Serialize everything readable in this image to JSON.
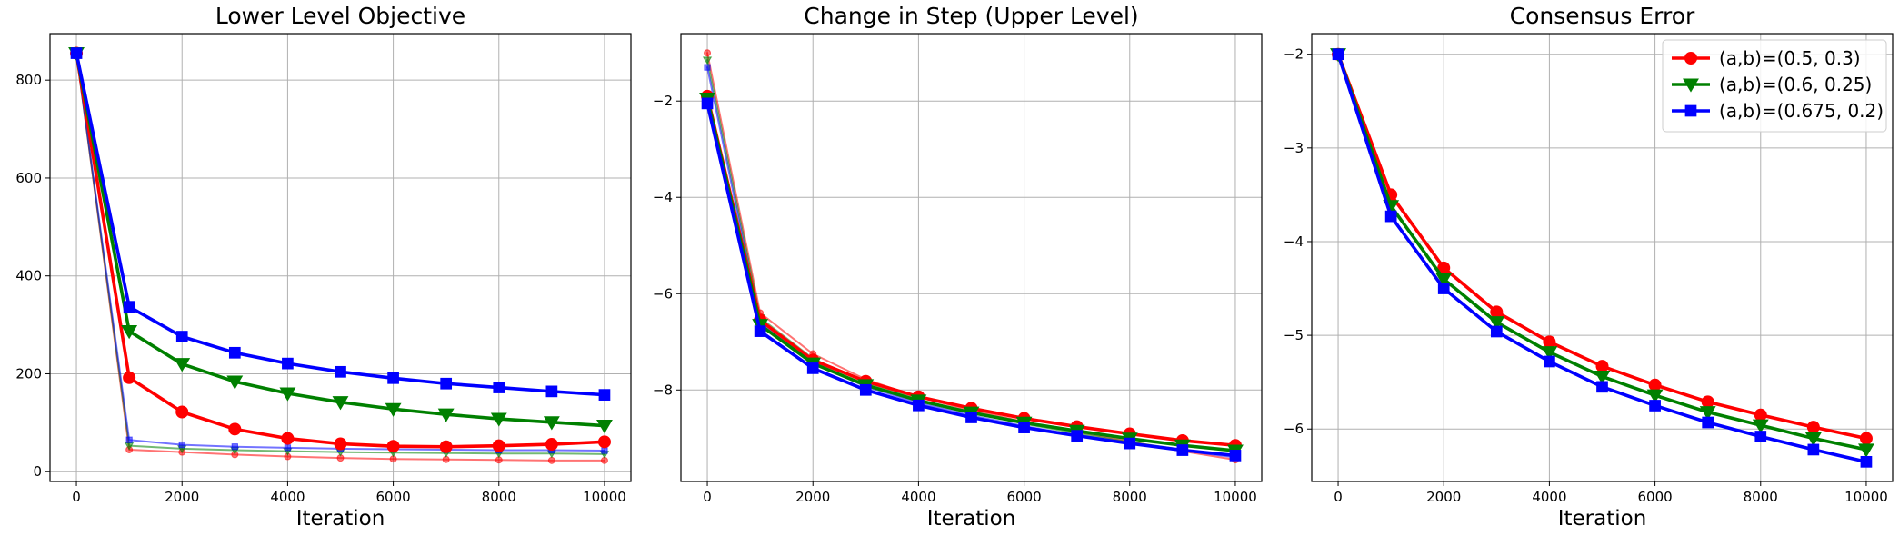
{
  "chart_data": [
    {
      "type": "line",
      "title": "Lower Level Objective",
      "xlabel": "Iteration",
      "ylabel": "",
      "x": [
        0,
        1000,
        2000,
        3000,
        4000,
        5000,
        6000,
        7000,
        8000,
        9000,
        10000
      ],
      "xticks": [
        0,
        2000,
        4000,
        6000,
        8000,
        10000
      ],
      "yticks": [
        0,
        200,
        400,
        600,
        800
      ],
      "xlim": [
        -500,
        10500
      ],
      "ylim": [
        -20,
        895
      ],
      "grid": true,
      "series": [
        {
          "name": "(a,b)=(0.5, 0.3)",
          "color": "#ff0000",
          "marker": "circle",
          "style": "main",
          "values": [
            855,
            192,
            122,
            87,
            68,
            57,
            52,
            51,
            53,
            56,
            61
          ]
        },
        {
          "name": "(a,b)=(0.6, 0.25)",
          "color": "#008000",
          "marker": "triangle-down",
          "style": "main",
          "values": [
            855,
            287,
            220,
            184,
            160,
            142,
            128,
            117,
            108,
            101,
            94
          ]
        },
        {
          "name": "(a,b)=(0.675, 0.2)",
          "color": "#0000ff",
          "marker": "square",
          "style": "main",
          "values": [
            855,
            337,
            276,
            243,
            221,
            204,
            191,
            180,
            172,
            164,
            157
          ]
        },
        {
          "color": "#ff0000",
          "marker": "circle",
          "style": "faint",
          "values": [
            855,
            45,
            40,
            35,
            31,
            28,
            26,
            25,
            24,
            23,
            23
          ]
        },
        {
          "color": "#008000",
          "marker": "triangle-down",
          "style": "faint",
          "values": [
            855,
            53,
            47,
            44,
            42,
            40,
            39,
            38,
            37,
            37,
            36
          ]
        },
        {
          "color": "#0000ff",
          "marker": "square",
          "style": "faint",
          "values": [
            855,
            65,
            55,
            51,
            49,
            47,
            46,
            45,
            44,
            44,
            43
          ]
        }
      ]
    },
    {
      "type": "line",
      "title": "Change in Step (Upper Level)",
      "xlabel": "Iteration",
      "ylabel": "",
      "x": [
        0,
        1000,
        2000,
        3000,
        4000,
        5000,
        6000,
        7000,
        8000,
        9000,
        10000
      ],
      "xticks": [
        0,
        2000,
        4000,
        6000,
        8000,
        10000
      ],
      "yticks": [
        -8,
        -6,
        -4,
        -2
      ],
      "xlim": [
        -500,
        10500
      ],
      "ylim": [
        -9.9,
        -0.6
      ],
      "grid": true,
      "series": [
        {
          "name": "(a,b)=(0.5, 0.3)",
          "color": "#ff0000",
          "marker": "circle",
          "style": "main",
          "values": [
            -1.9,
            -6.55,
            -7.38,
            -7.82,
            -8.14,
            -8.38,
            -8.59,
            -8.76,
            -8.91,
            -9.05,
            -9.15
          ]
        },
        {
          "name": "(a,b)=(0.6, 0.25)",
          "color": "#008000",
          "marker": "triangle-down",
          "style": "main",
          "values": [
            -1.95,
            -6.65,
            -7.45,
            -7.9,
            -8.22,
            -8.47,
            -8.68,
            -8.85,
            -9.01,
            -9.15,
            -9.26
          ]
        },
        {
          "name": "(a,b)=(0.675, 0.2)",
          "color": "#0000ff",
          "marker": "square",
          "style": "main",
          "values": [
            -2.05,
            -6.78,
            -7.55,
            -8.0,
            -8.32,
            -8.57,
            -8.78,
            -8.95,
            -9.11,
            -9.25,
            -9.36
          ]
        },
        {
          "color": "#ff0000",
          "marker": "circle",
          "style": "faint",
          "values": [
            -1.0,
            -6.4,
            -7.25,
            -7.78,
            -8.15,
            -8.42,
            -8.66,
            -8.87,
            -9.07,
            -9.27,
            -9.45
          ]
        },
        {
          "color": "#008000",
          "marker": "triangle-down",
          "style": "faint",
          "values": [
            -1.15,
            -6.5,
            -7.35,
            -7.85,
            -8.2,
            -8.47,
            -8.7,
            -8.9,
            -9.08,
            -9.24,
            -9.38
          ]
        },
        {
          "color": "#0000ff",
          "marker": "square",
          "style": "faint",
          "values": [
            -1.3,
            -6.6,
            -7.45,
            -7.93,
            -8.27,
            -8.53,
            -8.75,
            -8.94,
            -9.11,
            -9.26,
            -9.4
          ]
        }
      ]
    },
    {
      "type": "line",
      "title": "Consensus Error",
      "xlabel": "Iteration",
      "ylabel": "",
      "x": [
        0,
        1000,
        2000,
        3000,
        4000,
        5000,
        6000,
        7000,
        8000,
        9000,
        10000
      ],
      "xticks": [
        0,
        2000,
        4000,
        6000,
        8000,
        10000
      ],
      "yticks": [
        -6,
        -5,
        -4,
        -3,
        -2
      ],
      "xlim": [
        -500,
        10500
      ],
      "ylim": [
        -6.56,
        -1.78
      ],
      "grid": true,
      "legend": "top-right",
      "series": [
        {
          "name": "(a,b)=(0.5, 0.3)",
          "color": "#ff0000",
          "marker": "circle",
          "style": "main",
          "values": [
            -2.0,
            -3.5,
            -4.28,
            -4.75,
            -5.07,
            -5.33,
            -5.53,
            -5.71,
            -5.85,
            -5.98,
            -6.1
          ]
        },
        {
          "name": "(a,b)=(0.6, 0.25)",
          "color": "#008000",
          "marker": "triangle-down",
          "style": "main",
          "values": [
            -2.0,
            -3.62,
            -4.4,
            -4.86,
            -5.18,
            -5.44,
            -5.64,
            -5.82,
            -5.96,
            -6.1,
            -6.22
          ]
        },
        {
          "name": "(a,b)=(0.675, 0.2)",
          "color": "#0000ff",
          "marker": "square",
          "style": "main",
          "values": [
            -2.0,
            -3.73,
            -4.5,
            -4.96,
            -5.28,
            -5.55,
            -5.75,
            -5.93,
            -6.08,
            -6.22,
            -6.35
          ]
        }
      ]
    }
  ]
}
